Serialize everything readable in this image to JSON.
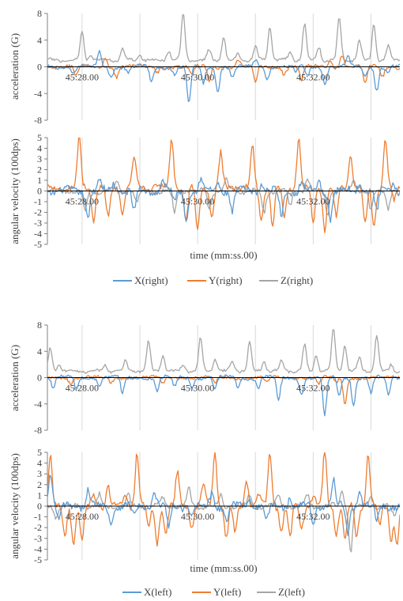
{
  "colors": {
    "X": "#5B9BD5",
    "Y": "#ED7D31",
    "Z": "#A5A5A5",
    "grid": "#D9D9D9",
    "axis": "#000000",
    "text": "#404040"
  },
  "chart_data": [
    {
      "type": "line",
      "id": "acc_right",
      "title": "",
      "xlabel": "",
      "ylabel": "acceleration (G)",
      "xlim": [
        "45:27.40",
        "45:33.50"
      ],
      "ylim": [
        -8,
        8
      ],
      "yticks": [
        8,
        4,
        0,
        -4,
        -8
      ],
      "xtick_labels": [
        "45:28.00",
        "45:30.00",
        "45:32.00"
      ],
      "grid": true,
      "legend": "none",
      "series": [
        {
          "name": "X(right)",
          "color_key": "X",
          "base": 0,
          "noise": 0.25,
          "period": 0.9,
          "phase": 0.0,
          "peaks": [
            [
              27.85,
              -1.0
            ],
            [
              28.3,
              2.5
            ],
            [
              28.5,
              -1.5
            ],
            [
              28.8,
              -1.0
            ],
            [
              29.2,
              -2.5
            ],
            [
              29.6,
              -1.0
            ],
            [
              29.85,
              -5.5
            ],
            [
              30.1,
              -2.5
            ],
            [
              30.35,
              -3.5
            ],
            [
              30.6,
              -1.5
            ],
            [
              31.0,
              1.0
            ],
            [
              31.2,
              -2.0
            ],
            [
              31.7,
              -1.0
            ],
            [
              31.9,
              -1.5
            ],
            [
              32.2,
              -2.5
            ],
            [
              32.6,
              1.5
            ],
            [
              32.9,
              -1.5
            ],
            [
              33.1,
              -3.5
            ],
            [
              33.3,
              -1.0
            ]
          ]
        },
        {
          "name": "Y(right)",
          "color_key": "Y",
          "base": 0,
          "noise": 0.25,
          "period": 1.0,
          "phase": 0.3,
          "peaks": [
            [
              27.9,
              -1.5
            ],
            [
              28.4,
              1.5
            ],
            [
              28.6,
              -1.5
            ],
            [
              29.3,
              -0.8
            ],
            [
              29.9,
              -1.5
            ],
            [
              30.2,
              -2.0
            ],
            [
              30.7,
              1.0
            ],
            [
              31.0,
              -2.5
            ],
            [
              31.5,
              -1.0
            ],
            [
              31.8,
              -2.0
            ],
            [
              32.3,
              1.0
            ],
            [
              32.5,
              2.0
            ],
            [
              32.9,
              -2.5
            ],
            [
              33.2,
              -1.5
            ]
          ]
        },
        {
          "name": "Z(right)",
          "color_key": "Z",
          "base": 1.0,
          "noise": 0.2,
          "period": 0.45,
          "phase": 0.1,
          "peaks": [
            [
              27.3,
              1.0
            ],
            [
              28.0,
              5.3
            ],
            [
              28.15,
              2.0
            ],
            [
              28.7,
              2.9
            ],
            [
              29.0,
              2.0
            ],
            [
              29.5,
              2.5
            ],
            [
              29.75,
              8.0
            ],
            [
              30.2,
              2.5
            ],
            [
              30.45,
              4.5
            ],
            [
              30.7,
              2.0
            ],
            [
              31.0,
              3.0
            ],
            [
              31.25,
              6.0
            ],
            [
              31.6,
              2.0
            ],
            [
              31.85,
              6.5
            ],
            [
              32.1,
              3.0
            ],
            [
              32.45,
              7.5
            ],
            [
              32.8,
              4.0
            ],
            [
              33.05,
              6.5
            ],
            [
              33.3,
              3.0
            ]
          ]
        }
      ]
    },
    {
      "type": "line",
      "id": "gyro_right",
      "title": "",
      "xlabel": "time (mm:ss.00)",
      "ylabel": "angular velocity (100dps)",
      "xlim": [
        "45:27.40",
        "45:33.50"
      ],
      "ylim": [
        -5,
        5
      ],
      "yticks": [
        5,
        4,
        3,
        2,
        1,
        0,
        -1,
        -2,
        -3,
        -4,
        -5
      ],
      "xtick_labels": [
        "45:28.00",
        "45:30.00",
        "45:32.00"
      ],
      "grid": true,
      "legend": "bottom",
      "series": [
        {
          "name": "X(right)",
          "color_key": "X",
          "base": 0,
          "noise": 0.3,
          "period": 0.6,
          "phase": 0.0,
          "peaks": [
            [
              28.1,
              -2.5
            ],
            [
              28.3,
              1.0
            ],
            [
              28.55,
              0.8
            ],
            [
              28.9,
              -2.0
            ],
            [
              29.4,
              1.0
            ],
            [
              29.6,
              -1.0
            ],
            [
              29.8,
              -2.5
            ],
            [
              30.05,
              1.0
            ],
            [
              30.35,
              0.8
            ],
            [
              30.6,
              -2.0
            ],
            [
              31.1,
              0.8
            ],
            [
              31.45,
              -2.5
            ],
            [
              31.8,
              1.0
            ],
            [
              32.1,
              0.8
            ],
            [
              32.3,
              -2.5
            ],
            [
              32.8,
              0.8
            ],
            [
              33.1,
              -2.0
            ],
            [
              33.4,
              0.8
            ]
          ]
        },
        {
          "name": "Y(right)",
          "color_key": "Y",
          "base": 0.3,
          "noise": 0.25,
          "period": 0.5,
          "phase": 0.2,
          "peaks": [
            [
              27.95,
              5.0
            ],
            [
              28.2,
              -2.8
            ],
            [
              28.45,
              -2.5
            ],
            [
              28.7,
              -2.2
            ],
            [
              28.9,
              3.0
            ],
            [
              29.25,
              0.5
            ],
            [
              29.55,
              5.0
            ],
            [
              29.8,
              -2.8
            ],
            [
              30.0,
              -3.8
            ],
            [
              30.25,
              -2.5
            ],
            [
              30.4,
              3.5
            ],
            [
              30.7,
              0.5
            ],
            [
              30.95,
              4.0
            ],
            [
              31.1,
              -2.8
            ],
            [
              31.3,
              -3.3
            ],
            [
              31.5,
              -2.5
            ],
            [
              31.75,
              5.0
            ],
            [
              32.0,
              -3.0
            ],
            [
              32.2,
              -3.5
            ],
            [
              32.4,
              -2.5
            ],
            [
              32.65,
              3.5
            ],
            [
              32.9,
              -3.0
            ],
            [
              33.05,
              -3.5
            ],
            [
              33.25,
              5.0
            ],
            [
              33.4,
              -1.0
            ]
          ]
        },
        {
          "name": "Z(right)",
          "color_key": "Z",
          "base": 0,
          "noise": 0.2,
          "period": 0.5,
          "phase": 0.1,
          "peaks": [
            [
              28.05,
              -2.0
            ],
            [
              28.6,
              1.0
            ],
            [
              28.95,
              -1.0
            ],
            [
              29.6,
              -2.0
            ],
            [
              30.2,
              -1.5
            ],
            [
              30.5,
              1.0
            ],
            [
              31.15,
              -2.0
            ],
            [
              31.6,
              -1.5
            ],
            [
              31.9,
              1.0
            ],
            [
              32.25,
              -2.0
            ],
            [
              32.7,
              1.0
            ],
            [
              33.0,
              -2.0
            ],
            [
              33.3,
              -1.5
            ]
          ]
        }
      ]
    },
    {
      "type": "line",
      "id": "acc_left",
      "title": "",
      "xlabel": "",
      "ylabel": "acceleration (G)",
      "xlim": [
        "45:27.40",
        "45:33.50"
      ],
      "ylim": [
        -8,
        8
      ],
      "yticks": [
        8,
        4,
        0,
        -4,
        -8
      ],
      "xtick_labels": [
        "45:28.00",
        "45:30.00",
        "45:32.00"
      ],
      "grid": true,
      "legend": "none",
      "series": [
        {
          "name": "X(left)",
          "color_key": "X",
          "base": 0,
          "noise": 0.25,
          "period": 0.9,
          "phase": 0.4,
          "peaks": [
            [
              27.5,
              -1.5
            ],
            [
              27.9,
              -2.0
            ],
            [
              28.3,
              -1.0
            ],
            [
              28.7,
              -2.5
            ],
            [
              29.3,
              -2.0
            ],
            [
              29.6,
              -1.5
            ],
            [
              29.9,
              -1.5
            ],
            [
              30.3,
              -2.0
            ],
            [
              30.7,
              -1.5
            ],
            [
              31.05,
              -1.5
            ],
            [
              31.4,
              -3.5
            ],
            [
              31.8,
              -2.5
            ],
            [
              32.2,
              -5.8
            ],
            [
              32.45,
              -3.0
            ],
            [
              32.7,
              -4.0
            ],
            [
              33.0,
              -2.5
            ],
            [
              33.3,
              -2.5
            ]
          ]
        },
        {
          "name": "Y(left)",
          "color_key": "Y",
          "base": 0,
          "noise": 0.2,
          "period": 1.0,
          "phase": 0.0,
          "peaks": [
            [
              27.8,
              -0.8
            ],
            [
              28.5,
              -0.8
            ],
            [
              29.4,
              -1.0
            ],
            [
              30.3,
              -1.0
            ],
            [
              31.2,
              -0.8
            ],
            [
              32.1,
              -1.0
            ],
            [
              32.4,
              -0.8
            ],
            [
              32.55,
              -4.0
            ]
          ]
        },
        {
          "name": "Z(left)",
          "color_key": "Z",
          "base": 1.0,
          "noise": 0.2,
          "period": 0.45,
          "phase": 0.2,
          "peaks": [
            [
              27.45,
              4.5
            ],
            [
              27.6,
              2.0
            ],
            [
              28.4,
              2.0
            ],
            [
              28.75,
              2.5
            ],
            [
              29.15,
              5.5
            ],
            [
              29.4,
              3.5
            ],
            [
              29.75,
              2.0
            ],
            [
              30.05,
              6.0
            ],
            [
              30.3,
              3.0
            ],
            [
              30.6,
              2.5
            ],
            [
              30.9,
              5.5
            ],
            [
              31.15,
              2.5
            ],
            [
              31.45,
              2.5
            ],
            [
              31.85,
              5.0
            ],
            [
              32.05,
              3.5
            ],
            [
              32.35,
              7.3
            ],
            [
              32.55,
              5.0
            ],
            [
              32.8,
              3.0
            ],
            [
              33.1,
              6.5
            ],
            [
              33.35,
              2.0
            ]
          ]
        }
      ]
    },
    {
      "type": "line",
      "id": "gyro_left",
      "title": "",
      "xlabel": "time (mm:ss.00)",
      "ylabel": "angular velocity (100dps)",
      "xlim": [
        "45:27.40",
        "45:33.50"
      ],
      "ylim": [
        -5,
        5
      ],
      "yticks": [
        5,
        4,
        3,
        2,
        1,
        0,
        -1,
        -2,
        -3,
        -4,
        -5
      ],
      "xtick_labels": [
        "45:28.00",
        "45:30.00",
        "45:32.00"
      ],
      "grid": true,
      "legend": "bottom",
      "series": [
        {
          "name": "X(left)",
          "color_key": "X",
          "base": 0,
          "noise": 0.3,
          "period": 0.6,
          "phase": 0.1,
          "peaks": [
            [
              27.45,
              3.0
            ],
            [
              27.6,
              -1.5
            ],
            [
              28.1,
              1.5
            ],
            [
              28.5,
              -1.5
            ],
            [
              28.9,
              -1.0
            ],
            [
              29.25,
              1.3
            ],
            [
              29.5,
              -2.0
            ],
            [
              29.9,
              -1.0
            ],
            [
              30.25,
              1.5
            ],
            [
              30.5,
              -1.5
            ],
            [
              30.9,
              1.0
            ],
            [
              31.2,
              -1.5
            ],
            [
              31.6,
              1.0
            ],
            [
              32.0,
              -1.5
            ],
            [
              32.35,
              2.5
            ],
            [
              32.6,
              -2.5
            ],
            [
              32.8,
              1.5
            ],
            [
              33.1,
              -1.5
            ]
          ]
        },
        {
          "name": "Y(left)",
          "color_key": "Y",
          "base": 0,
          "noise": 0.25,
          "period": 0.5,
          "phase": 0.0,
          "peaks": [
            [
              27.45,
              5.0
            ],
            [
              27.7,
              -3.0
            ],
            [
              27.85,
              -3.3
            ],
            [
              28.0,
              -3.0
            ],
            [
              28.2,
              1.0
            ],
            [
              28.45,
              2.0
            ],
            [
              28.75,
              0.8
            ],
            [
              28.95,
              5.0
            ],
            [
              29.15,
              -2.0
            ],
            [
              29.3,
              -3.5
            ],
            [
              29.45,
              -2.5
            ],
            [
              29.65,
              3.0
            ],
            [
              29.9,
              -1.8
            ],
            [
              30.1,
              2.0
            ],
            [
              30.3,
              5.0
            ],
            [
              30.5,
              -3.0
            ],
            [
              30.65,
              -2.5
            ],
            [
              30.85,
              2.5
            ],
            [
              31.05,
              1.0
            ],
            [
              31.25,
              5.0
            ],
            [
              31.45,
              -2.5
            ],
            [
              31.6,
              -3.0
            ],
            [
              31.8,
              -2.0
            ],
            [
              32.0,
              1.0
            ],
            [
              32.2,
              5.0
            ],
            [
              32.4,
              -2.5
            ],
            [
              32.55,
              -3.2
            ],
            [
              32.75,
              -3.0
            ],
            [
              32.95,
              5.0
            ],
            [
              33.15,
              -2.0
            ],
            [
              33.35,
              -3.0
            ],
            [
              33.45,
              -3.5
            ]
          ]
        },
        {
          "name": "Z(left)",
          "color_key": "Z",
          "base": 0,
          "noise": 0.2,
          "period": 0.5,
          "phase": 0.3,
          "peaks": [
            [
              27.55,
              -1.0
            ],
            [
              28.3,
              1.0
            ],
            [
              28.8,
              1.0
            ],
            [
              29.4,
              0.8
            ],
            [
              29.85,
              1.5
            ],
            [
              30.4,
              1.0
            ],
            [
              30.9,
              1.0
            ],
            [
              31.4,
              1.0
            ],
            [
              31.9,
              1.0
            ],
            [
              32.5,
              1.5
            ],
            [
              32.65,
              -4.2
            ],
            [
              33.0,
              1.0
            ],
            [
              33.4,
              -1.0
            ]
          ]
        }
      ]
    }
  ]
}
